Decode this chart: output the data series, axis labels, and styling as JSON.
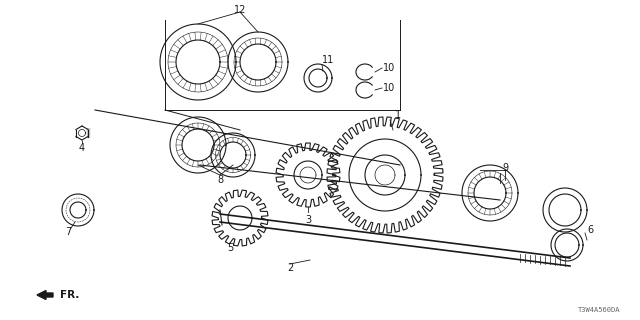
{
  "bg_color": "#ffffff",
  "line_color": "#1a1a1a",
  "fig_width": 6.4,
  "fig_height": 3.2,
  "dpi": 100,
  "watermark": "T3W4A560DA",
  "fr_label": "FR."
}
